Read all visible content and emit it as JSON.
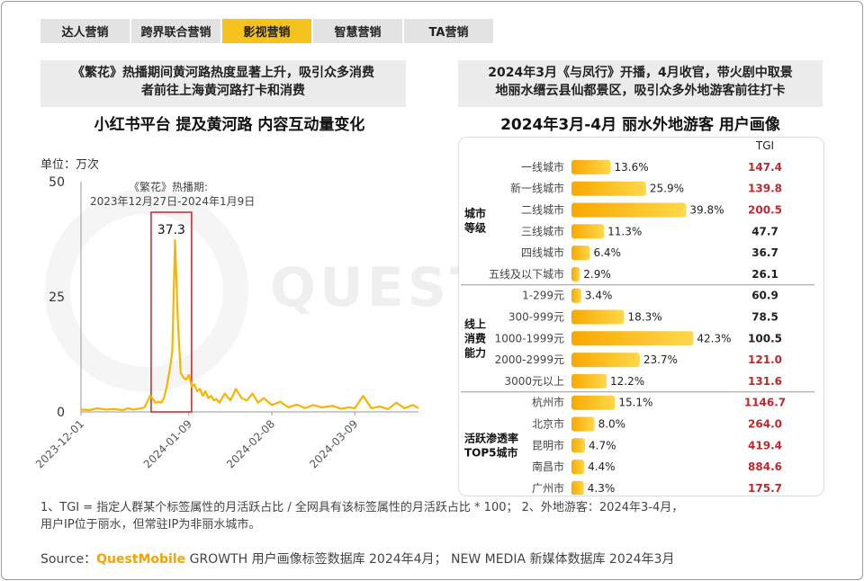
{
  "tabs": [
    {
      "label": "达人营销",
      "active": false
    },
    {
      "label": "跨界联合营销",
      "active": false
    },
    {
      "label": "影视营销",
      "active": true
    },
    {
      "label": "智慧营销",
      "active": false
    },
    {
      "label": "TA营销",
      "active": false
    }
  ],
  "left": {
    "banner_line1": "《繁花》热播期间黄河路热度显著上升，吸引众多消费",
    "banner_line2": "者前往上海黄河路打卡和消费",
    "chart_title": "小红书平台 提及黄河路 内容互动量变化",
    "unit": "单位：万次",
    "annotation_line1": "《繁花》热播期:",
    "annotation_line2": "2023年12月27日-2024年1月9日",
    "peak_label": "37.3"
  },
  "right": {
    "banner_line1": "2024年3月《与凤行》开播，4月收官，带火剧中取景",
    "banner_line2": "地丽水缙云县仙都景区，吸引众多外地游客前往打卡",
    "chart_title": "2024年3月-4月 丽水外地游客 用户画像",
    "tgi_header": "TGI"
  },
  "chart_data": [
    {
      "type": "line",
      "title": "小红书平台 提及黄河路 内容互动量变化",
      "ylabel": "单位：万次",
      "ylim": [
        0,
        50
      ],
      "yticks": [
        0,
        25,
        50
      ],
      "xlim": [
        "2023-12-01",
        "2024-04-01"
      ],
      "xticks": [
        "2023-12-01",
        "2024-01-09",
        "2024-02-08",
        "2024-03-09"
      ],
      "highlight": {
        "start": "2023-12-27",
        "end": "2024-01-09",
        "label": "37.3"
      },
      "series": [
        {
          "x": [
            "2023-12-01",
            "2023-12-04",
            "2023-12-07",
            "2023-12-10",
            "2023-12-13",
            "2023-12-16",
            "2023-12-18",
            "2023-12-20",
            "2023-12-22",
            "2023-12-24",
            "2023-12-26",
            "2023-12-28",
            "2023-12-29",
            "2023-12-30",
            "2023-12-31",
            "2024-01-01",
            "2024-01-02",
            "2024-01-03",
            "2024-01-04",
            "2024-01-05",
            "2024-01-06",
            "2024-01-07",
            "2024-01-08",
            "2024-01-09",
            "2024-01-10",
            "2024-01-11",
            "2024-01-12",
            "2024-01-13",
            "2024-01-14",
            "2024-01-15",
            "2024-01-16",
            "2024-01-17",
            "2024-01-18",
            "2024-01-19",
            "2024-01-20",
            "2024-01-22",
            "2024-01-24",
            "2024-01-26",
            "2024-01-28",
            "2024-01-30",
            "2024-02-01",
            "2024-02-03",
            "2024-02-05",
            "2024-02-08",
            "2024-02-11",
            "2024-02-14",
            "2024-02-17",
            "2024-02-20",
            "2024-02-23",
            "2024-02-26",
            "2024-03-01",
            "2024-03-04",
            "2024-03-07",
            "2024-03-09",
            "2024-03-12",
            "2024-03-15",
            "2024-03-18",
            "2024-03-21",
            "2024-03-24",
            "2024-03-27",
            "2024-03-30",
            "2024-04-01"
          ],
          "y": [
            0.5,
            0.4,
            0.8,
            0.5,
            0.6,
            0.4,
            0.8,
            0.5,
            0.7,
            1.0,
            3.5,
            2.0,
            2.2,
            2.0,
            3.0,
            5.5,
            9.0,
            13.0,
            37.3,
            20.0,
            8.5,
            7.5,
            7.0,
            8.0,
            5.5,
            6.0,
            4.5,
            5.0,
            3.5,
            4.5,
            3.0,
            3.5,
            2.5,
            2.8,
            2.0,
            4.0,
            2.5,
            5.0,
            3.0,
            2.5,
            4.0,
            2.0,
            3.0,
            1.5,
            2.2,
            1.0,
            1.6,
            0.8,
            1.5,
            1.0,
            1.3,
            0.7,
            1.0,
            0.8,
            3.5,
            0.8,
            1.2,
            0.6,
            2.0,
            0.8,
            1.5,
            0.8
          ]
        }
      ]
    },
    {
      "type": "bar",
      "title": "2024年3月-4月 丽水外地游客 用户画像",
      "xlim": [
        0,
        45
      ],
      "groups": [
        {
          "name": "城市等级",
          "categories": [
            "一线城市",
            "新一线城市",
            "二线城市",
            "三线城市",
            "四线城市",
            "五线及以下城市"
          ],
          "values": [
            13.6,
            25.9,
            39.8,
            11.3,
            6.4,
            2.9
          ],
          "tgi": [
            147.4,
            139.8,
            200.5,
            47.7,
            36.7,
            26.1
          ]
        },
        {
          "name": "线上消费能力",
          "categories": [
            "1-299元",
            "300-999元",
            "1000-1999元",
            "2000-2999元",
            "3000元以上"
          ],
          "values": [
            3.4,
            18.3,
            42.3,
            23.7,
            12.2
          ],
          "tgi": [
            60.9,
            78.5,
            100.5,
            121.0,
            131.6
          ]
        },
        {
          "name": "活跃渗透率TOP5城市",
          "categories": [
            "杭州市",
            "北京市",
            "昆明市",
            "南昌市",
            "广州市"
          ],
          "values": [
            15.1,
            8.0,
            4.7,
            4.4,
            4.3
          ],
          "tgi": [
            1146.7,
            264.0,
            419.4,
            884.6,
            175.7
          ]
        }
      ]
    }
  ],
  "group_labels": {
    "g0": [
      "城市",
      "等级"
    ],
    "g1": [
      "线上",
      "消费",
      "能力"
    ],
    "g2": [
      "活跃渗透率",
      "TOP5城市"
    ]
  },
  "colors": {
    "accent": "#f6c21e",
    "bar": "#f7b500",
    "tgi_high": "#c0282d",
    "tgi_normal": "#222222",
    "highlight_box": "#c0282d"
  },
  "notes": {
    "line1": "1、TGI = 指定人群某个标签属性的月活跃占比 / 全网具有该标签属性的月活跃占比 * 100；  2、外地游客：2024年3-4月，",
    "line2": "用户IP位于丽水，但常驻IP为非丽水城市。"
  },
  "source": {
    "prefix": "Source：",
    "brand": "QuestMobile",
    "text": " GROWTH 用户画像标签数据库 2024年4月；  NEW MEDIA 新媒体数据库 2024年3月"
  },
  "watermark": "QUESTMOBILE"
}
